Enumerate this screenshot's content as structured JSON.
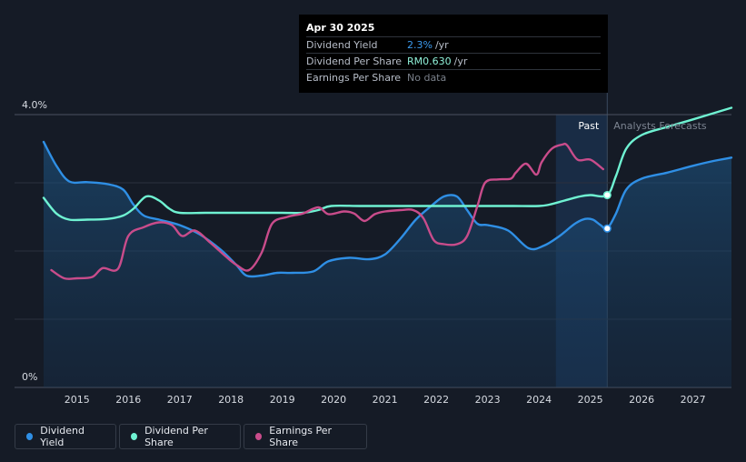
{
  "tooltip": {
    "date": "Apr 30 2025",
    "rows": [
      {
        "label": "Dividend Yield",
        "value": "2.3%",
        "unit": "/yr"
      },
      {
        "label": "Dividend Per Share",
        "value": "RM0.630",
        "unit": "/yr"
      },
      {
        "label": "Earnings Per Share",
        "value": "No data",
        "unit": ""
      }
    ]
  },
  "legend": [
    {
      "label": "Dividend Yield",
      "color": "#2f8fe5"
    },
    {
      "label": "Dividend Per Share",
      "color": "#6ff2d2"
    },
    {
      "label": "Earnings Per Share",
      "color": "#c94c8b"
    }
  ],
  "chart_data": {
    "type": "line",
    "y_axis_top_label": "4.0%",
    "y_axis_bottom_label": "0%",
    "ylim": [
      0,
      4.0
    ],
    "xlim": [
      2014.35,
      2027.75
    ],
    "x_ticks": [
      "2015",
      "2016",
      "2017",
      "2018",
      "2019",
      "2020",
      "2021",
      "2022",
      "2023",
      "2024",
      "2025",
      "2026",
      "2027"
    ],
    "past_label": "Past",
    "forecast_label": "Analysts Forecasts",
    "forecast_start": 2025.33,
    "highlight_start": 2024.33,
    "colors": {
      "yield": "#2f8fe5",
      "dps": "#6ff2d2",
      "eps": "#c94c8b"
    },
    "series": [
      {
        "name": "Dividend Yield",
        "x": [
          2014.35,
          2014.6,
          2014.85,
          2015.2,
          2015.6,
          2015.9,
          2016.1,
          2016.3,
          2016.6,
          2017.0,
          2017.4,
          2017.8,
          2018.1,
          2018.3,
          2018.6,
          2018.9,
          2019.2,
          2019.6,
          2019.9,
          2020.3,
          2020.7,
          2021.0,
          2021.3,
          2021.6,
          2021.9,
          2022.15,
          2022.4,
          2022.6,
          2022.8,
          2023.0,
          2023.4,
          2023.8,
          2024.1,
          2024.4,
          2024.7,
          2024.9,
          2025.05,
          2025.2,
          2025.33,
          2025.5,
          2025.7,
          2026.0,
          2026.5,
          2027.0,
          2027.4,
          2027.75
        ],
        "y": [
          3.6,
          3.25,
          3.02,
          3.01,
          2.98,
          2.9,
          2.68,
          2.52,
          2.46,
          2.38,
          2.24,
          2.02,
          1.8,
          1.64,
          1.64,
          1.68,
          1.68,
          1.7,
          1.85,
          1.9,
          1.88,
          1.95,
          2.18,
          2.46,
          2.66,
          2.8,
          2.8,
          2.6,
          2.4,
          2.38,
          2.3,
          2.04,
          2.08,
          2.22,
          2.4,
          2.47,
          2.46,
          2.38,
          2.33,
          2.55,
          2.9,
          3.06,
          3.15,
          3.25,
          3.32,
          3.37
        ]
      },
      {
        "name": "Dividend Per Share",
        "x": [
          2014.35,
          2014.6,
          2014.85,
          2015.2,
          2015.6,
          2015.9,
          2016.1,
          2016.35,
          2016.6,
          2016.8,
          2017.0,
          2017.5,
          2018.0,
          2018.5,
          2019.0,
          2019.4,
          2019.7,
          2019.95,
          2020.5,
          2021.0,
          2021.5,
          2022.0,
          2022.5,
          2023.0,
          2023.5,
          2024.0,
          2024.2,
          2024.5,
          2024.8,
          2025.0,
          2025.33,
          2025.5,
          2025.7,
          2026.0,
          2026.5,
          2027.0,
          2027.75
        ],
        "y": [
          2.78,
          2.55,
          2.46,
          2.46,
          2.47,
          2.52,
          2.62,
          2.8,
          2.74,
          2.62,
          2.56,
          2.56,
          2.56,
          2.56,
          2.56,
          2.56,
          2.6,
          2.66,
          2.66,
          2.66,
          2.66,
          2.66,
          2.66,
          2.66,
          2.66,
          2.66,
          2.68,
          2.74,
          2.8,
          2.82,
          2.82,
          3.1,
          3.5,
          3.7,
          3.82,
          3.93,
          4.1
        ]
      },
      {
        "name": "Earnings Per Share",
        "x": [
          2014.5,
          2014.75,
          2015.0,
          2015.3,
          2015.5,
          2015.8,
          2016.0,
          2016.3,
          2016.6,
          2016.85,
          2017.05,
          2017.3,
          2017.6,
          2017.9,
          2018.1,
          2018.35,
          2018.6,
          2018.8,
          2019.1,
          2019.4,
          2019.7,
          2019.9,
          2020.2,
          2020.4,
          2020.6,
          2020.8,
          2021.0,
          2021.3,
          2021.55,
          2021.75,
          2021.95,
          2022.15,
          2022.4,
          2022.6,
          2022.8,
          2022.95,
          2023.2,
          2023.45,
          2023.55,
          2023.75,
          2023.95,
          2024.05,
          2024.25,
          2024.45,
          2024.55,
          2024.75,
          2025.0,
          2025.25
        ],
        "y": [
          1.72,
          1.6,
          1.6,
          1.62,
          1.75,
          1.74,
          2.22,
          2.35,
          2.42,
          2.38,
          2.22,
          2.3,
          2.12,
          1.92,
          1.8,
          1.72,
          1.98,
          2.4,
          2.5,
          2.55,
          2.64,
          2.54,
          2.58,
          2.55,
          2.44,
          2.54,
          2.58,
          2.6,
          2.6,
          2.48,
          2.16,
          2.1,
          2.1,
          2.22,
          2.66,
          3.0,
          3.05,
          3.06,
          3.15,
          3.28,
          3.12,
          3.3,
          3.5,
          3.56,
          3.55,
          3.34,
          3.34,
          3.2
        ]
      }
    ]
  }
}
